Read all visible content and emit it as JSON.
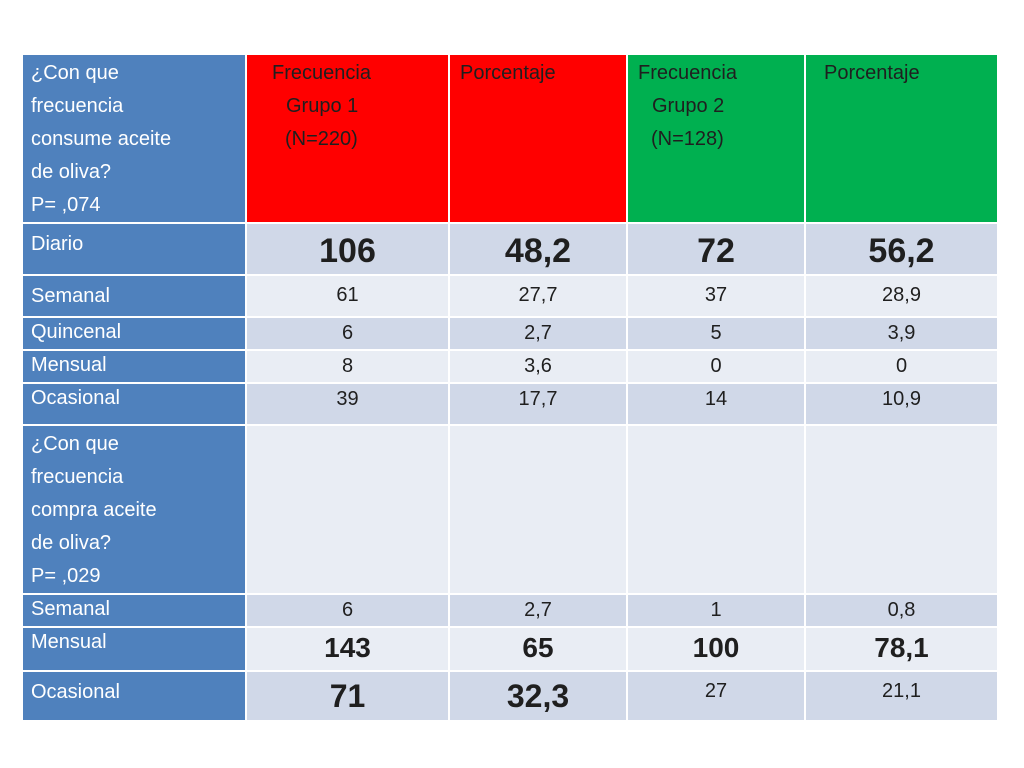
{
  "chart_data": {
    "type": "table",
    "header": {
      "question1": [
        "¿Con que",
        "frecuencia",
        "consume aceite",
        "de oliva?",
        "P= ,074"
      ],
      "columns": [
        {
          "lines": [
            "Frecuencia",
            "Grupo 1",
            "(N=220)"
          ],
          "color": "#ff0000"
        },
        {
          "lines": [
            "Porcentaje"
          ],
          "color": "#ff0000"
        },
        {
          "lines": [
            "Frecuencia",
            "Grupo 2",
            "(N=128)"
          ],
          "color": "#00b050"
        },
        {
          "lines": [
            "Porcentaje"
          ],
          "color": "#00b050"
        }
      ]
    },
    "rows": [
      {
        "label": "Diario",
        "values": [
          "106",
          "48,2",
          "72",
          "56,2"
        ],
        "bold": [
          true,
          true,
          true,
          true
        ]
      },
      {
        "label": "Semanal",
        "values": [
          "61",
          "27,7",
          "37",
          "28,9"
        ],
        "bold": [
          false,
          false,
          false,
          false
        ]
      },
      {
        "label": "Quincenal",
        "values": [
          "6",
          "2,7",
          "5",
          "3,9"
        ],
        "bold": [
          false,
          false,
          false,
          false
        ]
      },
      {
        "label": "Mensual",
        "values": [
          "8",
          "3,6",
          "0",
          "0"
        ],
        "bold": [
          false,
          false,
          false,
          false
        ]
      },
      {
        "label": "Ocasional",
        "values": [
          "39",
          "17,7",
          "14",
          "10,9"
        ],
        "bold": [
          false,
          false,
          false,
          false
        ]
      }
    ],
    "question2": [
      "¿Con que",
      "frecuencia",
      "compra aceite",
      "de oliva?",
      "P= ,029"
    ],
    "rows2": [
      {
        "label": "Semanal",
        "values": [
          "6",
          "2,7",
          "1",
          "0,8"
        ],
        "bold": [
          false,
          false,
          false,
          false
        ]
      },
      {
        "label": "Mensual",
        "values": [
          "143",
          "65",
          "100",
          "78,1"
        ],
        "bold": [
          true,
          true,
          true,
          true
        ]
      },
      {
        "label": "Ocasional",
        "values": [
          "71",
          "32,3",
          "27",
          "21,1"
        ],
        "bold": [
          true,
          true,
          false,
          false
        ]
      }
    ]
  }
}
